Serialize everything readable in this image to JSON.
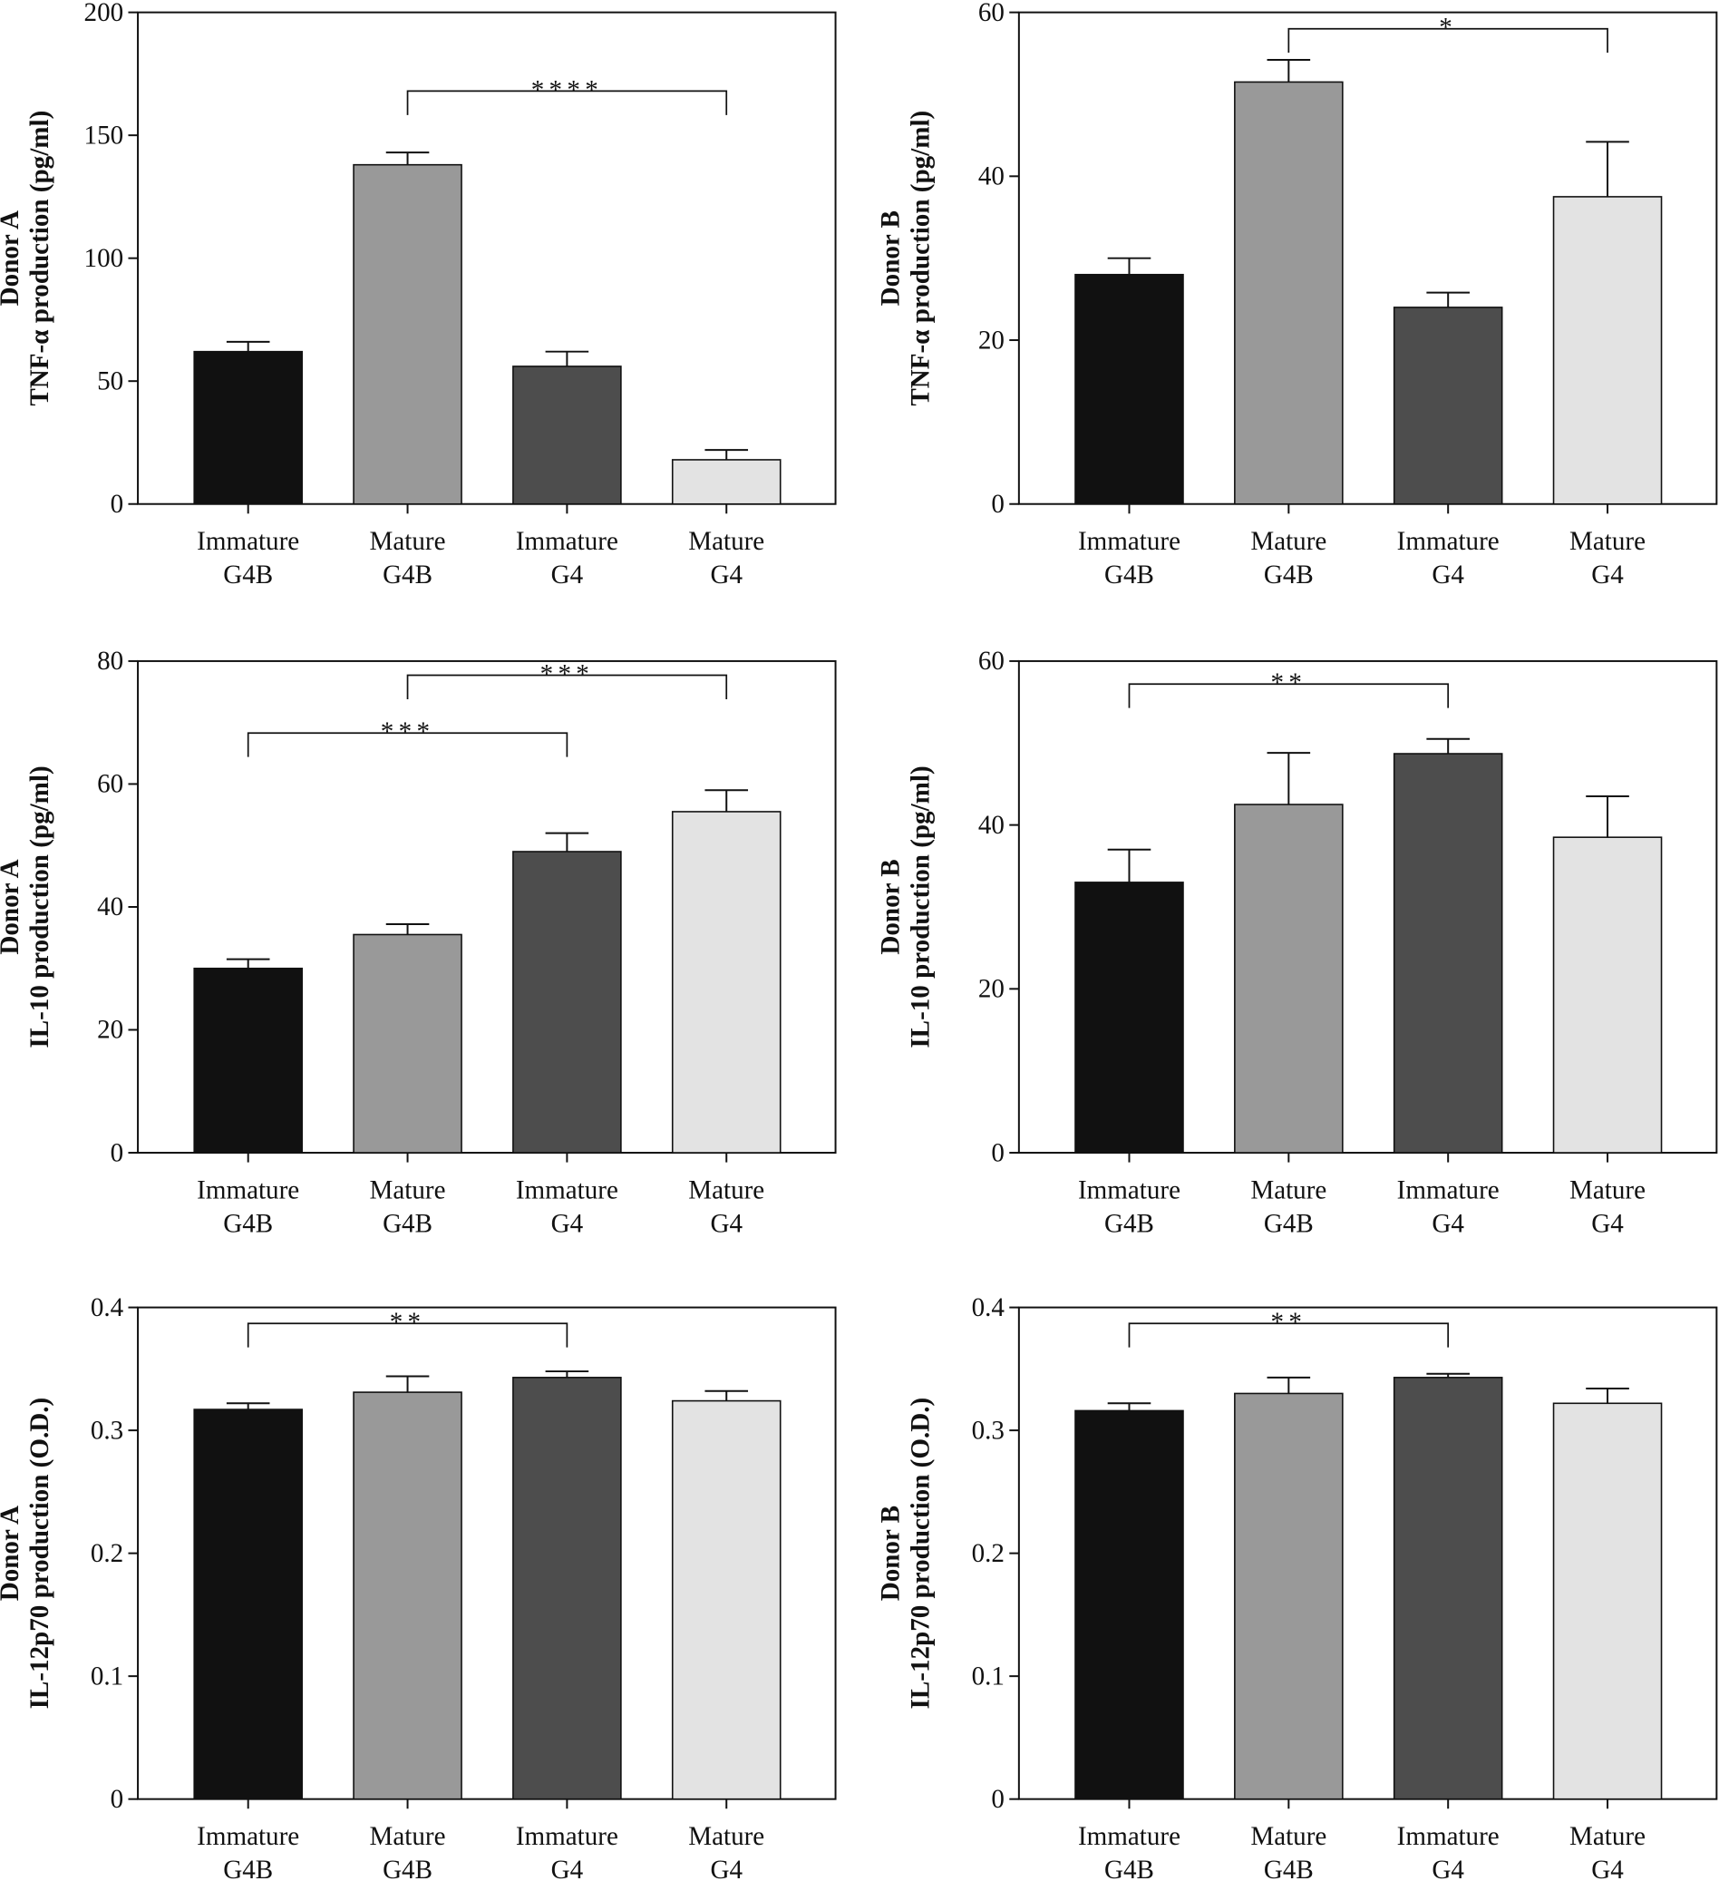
{
  "chart_data": [
    {
      "type": "bar",
      "y_label": [
        "Donor A",
        "TNF-α production (pg/ml)"
      ],
      "categories": [
        [
          "Immature",
          "G4B"
        ],
        [
          "Mature",
          "G4B"
        ],
        [
          "Immature",
          "G4"
        ],
        [
          "Mature",
          "G4"
        ]
      ],
      "values": [
        62,
        138,
        56,
        18
      ],
      "errors": [
        4,
        5,
        6,
        4
      ],
      "colors": [
        "#111111",
        "#999999",
        "#4d4d4d",
        "#e3e3e3"
      ],
      "ylim": [
        0,
        200
      ],
      "yticks": [
        0,
        50,
        100,
        150,
        200
      ],
      "annotations": [
        {
          "from": 1,
          "to": 3,
          "y": 168,
          "label": "****"
        }
      ]
    },
    {
      "type": "bar",
      "y_label": [
        "Donor B",
        "TNF-α production (pg/ml)"
      ],
      "categories": [
        [
          "Immature",
          "G4B"
        ],
        [
          "Mature",
          "G4B"
        ],
        [
          "Immature",
          "G4"
        ],
        [
          "Mature",
          "G4"
        ]
      ],
      "values": [
        28,
        51.5,
        24,
        37.5
      ],
      "errors": [
        2,
        2.7,
        1.8,
        6.7
      ],
      "colors": [
        "#111111",
        "#999999",
        "#4d4d4d",
        "#e3e3e3"
      ],
      "ylim": [
        0,
        60
      ],
      "yticks": [
        0,
        20,
        40,
        60
      ],
      "annotations": [
        {
          "from": 1,
          "to": 3,
          "y": 58,
          "label": "*"
        }
      ]
    },
    {
      "type": "bar",
      "y_label": [
        "Donor A",
        "IL-10 production (pg/ml)"
      ],
      "categories": [
        [
          "Immature",
          "G4B"
        ],
        [
          "Mature",
          "G4B"
        ],
        [
          "Immature",
          "G4"
        ],
        [
          "Mature",
          "G4"
        ]
      ],
      "values": [
        30,
        35.5,
        49,
        55.5
      ],
      "errors": [
        1.5,
        1.7,
        3,
        3.5
      ],
      "colors": [
        "#111111",
        "#999999",
        "#4d4d4d",
        "#e3e3e3"
      ],
      "ylim": [
        0,
        80
      ],
      "yticks": [
        0,
        20,
        40,
        60,
        80
      ],
      "annotations": [
        {
          "from": 0,
          "to": 2,
          "y": 68.3,
          "label": "***"
        },
        {
          "from": 1,
          "to": 3,
          "y": 77.7,
          "label": "***"
        }
      ]
    },
    {
      "type": "bar",
      "y_label": [
        "Donor B",
        "IL-10 production (pg/ml)"
      ],
      "categories": [
        [
          "Immature",
          "G4B"
        ],
        [
          "Mature",
          "G4B"
        ],
        [
          "Immature",
          "G4"
        ],
        [
          "Mature",
          "G4"
        ]
      ],
      "values": [
        33,
        42.5,
        48.7,
        38.5
      ],
      "errors": [
        4,
        6.3,
        1.8,
        5
      ],
      "colors": [
        "#111111",
        "#999999",
        "#4d4d4d",
        "#e3e3e3"
      ],
      "ylim": [
        0,
        60
      ],
      "yticks": [
        0,
        20,
        40,
        60
      ],
      "annotations": [
        {
          "from": 0,
          "to": 2,
          "y": 57.2,
          "label": "**"
        }
      ]
    },
    {
      "type": "bar",
      "y_label": [
        "Donor A",
        "IL-12p70 production (O.D.)"
      ],
      "categories": [
        [
          "Immature",
          "G4B"
        ],
        [
          "Mature",
          "G4B"
        ],
        [
          "Immature",
          "G4"
        ],
        [
          "Mature",
          "G4"
        ]
      ],
      "values": [
        0.317,
        0.331,
        0.343,
        0.324
      ],
      "errors": [
        0.005,
        0.013,
        0.005,
        0.008
      ],
      "colors": [
        "#111111",
        "#999999",
        "#4d4d4d",
        "#e3e3e3"
      ],
      "ylim": [
        0,
        0.4
      ],
      "yticks": [
        0,
        0.1,
        0.2,
        0.3,
        0.4
      ],
      "annotations": [
        {
          "from": 0,
          "to": 2,
          "y": 0.387,
          "label": "**"
        }
      ]
    },
    {
      "type": "bar",
      "y_label": [
        "Donor B",
        "IL-12p70 production (O.D.)"
      ],
      "categories": [
        [
          "Immature",
          "G4B"
        ],
        [
          "Mature",
          "G4B"
        ],
        [
          "Immature",
          "G4"
        ],
        [
          "Mature",
          "G4"
        ]
      ],
      "values": [
        0.316,
        0.33,
        0.343,
        0.322
      ],
      "errors": [
        0.006,
        0.013,
        0.003,
        0.012
      ],
      "colors": [
        "#111111",
        "#999999",
        "#4d4d4d",
        "#e3e3e3"
      ],
      "ylim": [
        0,
        0.4
      ],
      "yticks": [
        0,
        0.1,
        0.2,
        0.3,
        0.4
      ],
      "annotations": [
        {
          "from": 0,
          "to": 2,
          "y": 0.387,
          "label": "**"
        }
      ]
    }
  ]
}
